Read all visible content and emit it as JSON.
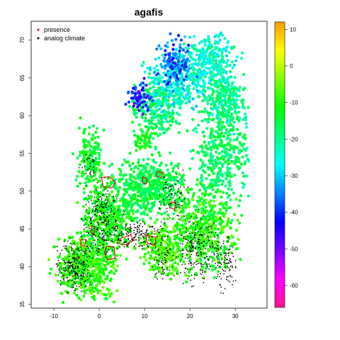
{
  "title": "agafis",
  "legend": {
    "items": [
      {
        "label": "presence",
        "symbol_color": "#cc0000"
      },
      {
        "label": "analog climate",
        "symbol_color": "#000000"
      }
    ]
  },
  "chart_data": {
    "type": "scatter",
    "title": "agafis",
    "xlim": [
      -15,
      37
    ],
    "ylim": [
      34.5,
      72.5
    ],
    "x_ticks": [
      "-10",
      "0",
      "10",
      "20",
      "30"
    ],
    "x_tick_values": [
      -10,
      0,
      10,
      20,
      30
    ],
    "y_ticks": [
      "35",
      "40",
      "45",
      "50",
      "55",
      "60",
      "65",
      "70"
    ],
    "y_tick_values": [
      35,
      40,
      45,
      50,
      55,
      60,
      65,
      70
    ],
    "legend_placement": "top-left",
    "colorbar": {
      "range": [
        -66,
        12
      ],
      "ticks": [
        "10",
        "0",
        "-10",
        "-20",
        "-30",
        "-40",
        "-50",
        "-60"
      ],
      "tick_values": [
        10,
        0,
        -10,
        -20,
        -30,
        -40,
        -50,
        -60
      ],
      "colors": [
        "#ff1493",
        "#ff00ff",
        "#7a00ff",
        "#0000ff",
        "#0080ff",
        "#00ffff",
        "#00ff80",
        "#00ff00",
        "#80ff00",
        "#ffff00",
        "#ff9900"
      ],
      "placement": "right"
    },
    "series": [
      {
        "name": "presence",
        "color": "#cc0000",
        "polygons": [
          [
            [
              0.5,
              51.8
            ],
            [
              2.2,
              51.9
            ],
            [
              3.6,
              51.2
            ],
            [
              2.8,
              50.4
            ],
            [
              0.9,
              50.6
            ]
          ],
          [
            [
              9.6,
              51.9
            ],
            [
              10.6,
              51.6
            ],
            [
              10.3,
              50.9
            ],
            [
              9.5,
              51.2
            ]
          ],
          [
            [
              12.8,
              52.6
            ],
            [
              14.0,
              52.4
            ],
            [
              13.6,
              51.8
            ],
            [
              12.6,
              52.0
            ]
          ],
          [
            [
              15.8,
              48.6
            ],
            [
              17.0,
              48.4
            ],
            [
              16.6,
              47.6
            ],
            [
              15.5,
              47.8
            ]
          ],
          [
            [
              -1.7,
              45.4
            ],
            [
              -0.9,
              45.3
            ],
            [
              -1.2,
              44.3
            ],
            [
              -1.9,
              44.6
            ]
          ],
          [
            [
              -4.0,
              43.6
            ],
            [
              -2.9,
              43.6
            ],
            [
              -3.2,
              42.7
            ],
            [
              -4.1,
              42.9
            ]
          ],
          [
            [
              4.6,
              43.7
            ],
            [
              6.9,
              44.2
            ],
            [
              7.6,
              43.5
            ],
            [
              5.9,
              42.9
            ],
            [
              4.5,
              43.0
            ]
          ],
          [
            [
              10.2,
              44.2
            ],
            [
              12.5,
              43.9
            ],
            [
              12.3,
              42.8
            ],
            [
              10.6,
              43.1
            ]
          ],
          [
            [
              1.6,
              42.7
            ],
            [
              3.3,
              42.6
            ],
            [
              3.5,
              41.1
            ],
            [
              1.8,
              40.9
            ],
            [
              1.2,
              41.8
            ]
          ]
        ]
      },
      {
        "name": "analog climate",
        "color": "#000000",
        "regions": [
          {
            "center": [
              -5.5,
              40.2
            ],
            "spread": [
              3.2,
              2.8
            ],
            "count": 220
          },
          {
            "center": [
              0.5,
              46.0
            ],
            "spread": [
              3.5,
              4.0
            ],
            "count": 220
          },
          {
            "center": [
              8.5,
              44.2
            ],
            "spread": [
              6.0,
              1.6
            ],
            "count": 160
          },
          {
            "center": [
              22.0,
              42.0
            ],
            "spread": [
              4.5,
              3.8
            ],
            "count": 220
          },
          {
            "center": [
              28.0,
              40.5
            ],
            "spread": [
              2.0,
              3.0
            ],
            "count": 80
          },
          {
            "center": [
              14.0,
              41.0
            ],
            "spread": [
              2.0,
              2.5
            ],
            "count": 60
          },
          {
            "center": [
              16.0,
              50.0
            ],
            "spread": [
              3.0,
              2.5
            ],
            "count": 70
          },
          {
            "center": [
              -2.0,
              53.5
            ],
            "spread": [
              1.8,
              2.0
            ],
            "count": 30
          }
        ]
      },
      {
        "name": "background",
        "regions": [
          {
            "center": [
              -3.0,
              40.0
            ],
            "spread": [
              5.5,
              3.5
            ],
            "count": 520,
            "value_range": [
              -14,
              -4
            ]
          },
          {
            "center": [
              1.5,
              46.5
            ],
            "spread": [
              4.5,
              4.0
            ],
            "count": 420,
            "value_range": [
              -16,
              -6
            ]
          },
          {
            "center": [
              -2.0,
              54.5
            ],
            "spread": [
              2.5,
              3.5
            ],
            "count": 160,
            "value_range": [
              -18,
              -8
            ]
          },
          {
            "center": [
              11.0,
              50.5
            ],
            "spread": [
              7.0,
              3.5
            ],
            "count": 560,
            "value_range": [
              -20,
              -10
            ]
          },
          {
            "center": [
              14.0,
              42.5
            ],
            "spread": [
              4.0,
              3.0
            ],
            "count": 240,
            "value_range": [
              -12,
              -4
            ]
          },
          {
            "center": [
              23.0,
              45.0
            ],
            "spread": [
              6.0,
              5.0
            ],
            "count": 520,
            "value_range": [
              -16,
              -4
            ]
          },
          {
            "center": [
              27.0,
              55.0
            ],
            "spread": [
              5.5,
              6.0
            ],
            "count": 420,
            "value_range": [
              -22,
              -12
            ]
          },
          {
            "center": [
              13.0,
              61.0
            ],
            "spread": [
              5.0,
              3.0
            ],
            "count": 260,
            "value_range": [
              -24,
              -12
            ]
          },
          {
            "center": [
              17.0,
              64.5
            ],
            "spread": [
              6.0,
              3.5
            ],
            "count": 300,
            "value_range": [
              -32,
              -18
            ]
          },
          {
            "center": [
              24.5,
              67.0
            ],
            "spread": [
              5.5,
              3.0
            ],
            "count": 320,
            "value_range": [
              -30,
              -18
            ]
          },
          {
            "center": [
              17.0,
              67.0
            ],
            "spread": [
              3.5,
              3.0
            ],
            "count": 120,
            "value_range": [
              -44,
              -30
            ]
          },
          {
            "center": [
              9.0,
              62.5
            ],
            "spread": [
              2.5,
              1.8
            ],
            "count": 60,
            "value_range": [
              -50,
              -36
            ]
          },
          {
            "center": [
              10.0,
              57.0
            ],
            "spread": [
              2.0,
              1.2
            ],
            "count": 60,
            "value_range": [
              -16,
              -8
            ]
          },
          {
            "center": [
              28.0,
              62.0
            ],
            "spread": [
              4.0,
              3.0
            ],
            "count": 220,
            "value_range": [
              -26,
              -14
            ]
          }
        ]
      }
    ]
  }
}
